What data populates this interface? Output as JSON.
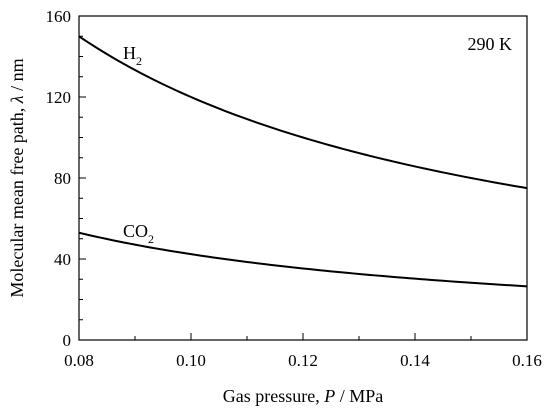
{
  "chart_data": {
    "type": "line",
    "title": "",
    "xlabel": {
      "prefix": "Gas pressure, ",
      "symbol": "P",
      "suffix": " / MPa"
    },
    "ylabel": {
      "prefix": "Molecular mean free path, ",
      "symbol": "λ",
      "suffix": " / nm"
    },
    "xlim": [
      0.08,
      0.16
    ],
    "ylim": [
      0,
      160
    ],
    "x_ticks": [
      "0.08",
      "0.10",
      "0.12",
      "0.14",
      "0.16"
    ],
    "y_ticks": [
      "0",
      "40",
      "80",
      "120",
      "160"
    ],
    "grid": false,
    "annotation": "290 K",
    "series": [
      {
        "name": "H2",
        "label_main": "H",
        "label_sub": "2",
        "x": [
          0.08,
          0.09,
          0.1,
          0.11,
          0.12,
          0.13,
          0.14,
          0.15,
          0.16
        ],
        "values": [
          150,
          133.3,
          120,
          109.1,
          100,
          92.3,
          85.7,
          80,
          75
        ]
      },
      {
        "name": "CO2",
        "label_main": "CO",
        "label_sub": "2",
        "x": [
          0.08,
          0.09,
          0.1,
          0.11,
          0.12,
          0.13,
          0.14,
          0.15,
          0.16
        ],
        "values": [
          53,
          47.1,
          42.4,
          38.5,
          35.3,
          32.6,
          30.3,
          28.3,
          26.5
        ]
      }
    ]
  }
}
